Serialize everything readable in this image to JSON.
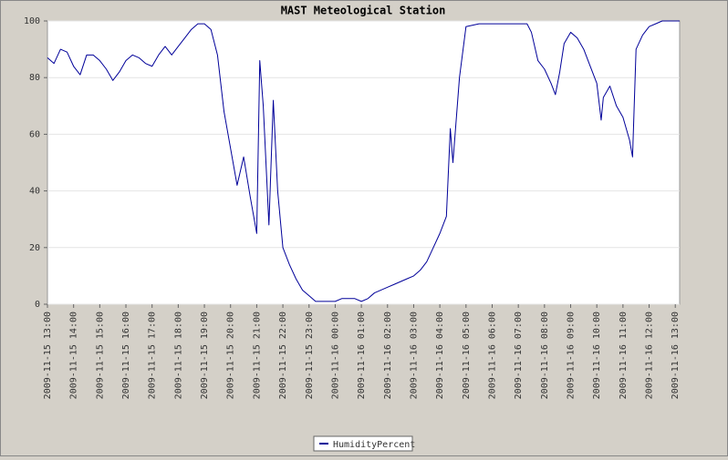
{
  "chart_data": {
    "type": "line",
    "title": "MAST Meteological Station",
    "x": [
      "2009-11-15 13:00",
      "2009-11-15 13:15",
      "2009-11-15 13:30",
      "2009-11-15 13:45",
      "2009-11-15 14:00",
      "2009-11-15 14:15",
      "2009-11-15 14:30",
      "2009-11-15 14:45",
      "2009-11-15 15:00",
      "2009-11-15 15:15",
      "2009-11-15 15:30",
      "2009-11-15 15:45",
      "2009-11-15 16:00",
      "2009-11-15 16:15",
      "2009-11-15 16:30",
      "2009-11-15 16:45",
      "2009-11-15 17:00",
      "2009-11-15 17:15",
      "2009-11-15 17:30",
      "2009-11-15 17:45",
      "2009-11-15 18:00",
      "2009-11-15 18:15",
      "2009-11-15 18:30",
      "2009-11-15 18:45",
      "2009-11-15 19:00",
      "2009-11-15 19:15",
      "2009-11-15 19:30",
      "2009-11-15 19:45",
      "2009-11-15 20:00",
      "2009-11-15 20:15",
      "2009-11-15 20:30",
      "2009-11-15 20:45",
      "2009-11-15 21:00",
      "2009-11-15 21:07",
      "2009-11-15 21:15",
      "2009-11-15 21:28",
      "2009-11-15 21:38",
      "2009-11-15 21:48",
      "2009-11-15 22:00",
      "2009-11-15 22:15",
      "2009-11-15 22:30",
      "2009-11-15 22:45",
      "2009-11-15 23:00",
      "2009-11-15 23:15",
      "2009-11-15 23:30",
      "2009-11-15 23:45",
      "2009-11-16 00:00",
      "2009-11-16 00:15",
      "2009-11-16 00:30",
      "2009-11-16 00:45",
      "2009-11-16 01:00",
      "2009-11-16 01:15",
      "2009-11-16 01:30",
      "2009-11-16 01:45",
      "2009-11-16 02:00",
      "2009-11-16 02:15",
      "2009-11-16 02:30",
      "2009-11-16 02:45",
      "2009-11-16 03:00",
      "2009-11-16 03:15",
      "2009-11-16 03:30",
      "2009-11-16 03:45",
      "2009-11-16 04:00",
      "2009-11-16 04:15",
      "2009-11-16 04:24",
      "2009-11-16 04:30",
      "2009-11-16 04:45",
      "2009-11-16 05:00",
      "2009-11-16 05:30",
      "2009-11-16 06:00",
      "2009-11-16 06:30",
      "2009-11-16 07:00",
      "2009-11-16 07:20",
      "2009-11-16 07:30",
      "2009-11-16 07:45",
      "2009-11-16 08:00",
      "2009-11-16 08:15",
      "2009-11-16 08:25",
      "2009-11-16 08:35",
      "2009-11-16 08:45",
      "2009-11-16 09:00",
      "2009-11-16 09:15",
      "2009-11-16 09:30",
      "2009-11-16 09:45",
      "2009-11-16 10:00",
      "2009-11-16 10:10",
      "2009-11-16 10:15",
      "2009-11-16 10:30",
      "2009-11-16 10:45",
      "2009-11-16 11:00",
      "2009-11-16 11:15",
      "2009-11-16 11:22",
      "2009-11-16 11:30",
      "2009-11-16 11:45",
      "2009-11-16 12:00",
      "2009-11-16 12:15",
      "2009-11-16 12:30",
      "2009-11-16 13:00",
      "2009-11-16 13:10"
    ],
    "series": [
      {
        "name": "HumidityPercent",
        "color": "#000099",
        "values": [
          87,
          85,
          90,
          89,
          84,
          81,
          88,
          88,
          86,
          83,
          79,
          82,
          86,
          88,
          87,
          85,
          84,
          88,
          91,
          88,
          91,
          94,
          97,
          99,
          99,
          97,
          88,
          68,
          55,
          42,
          52,
          38,
          25,
          86,
          70,
          28,
          72,
          40,
          20,
          14,
          9,
          5,
          3,
          1,
          1,
          1,
          1,
          2,
          2,
          2,
          1,
          2,
          4,
          5,
          6,
          7,
          8,
          9,
          10,
          12,
          15,
          20,
          25,
          31,
          62,
          50,
          80,
          98,
          99,
          99,
          99,
          99,
          99,
          96,
          86,
          83,
          78,
          74,
          82,
          92,
          96,
          94,
          90,
          84,
          78,
          65,
          73,
          77,
          70,
          66,
          58,
          52,
          90,
          95,
          98,
          99,
          100,
          100,
          100
        ]
      }
    ],
    "xlim": [
      "2009-11-15 13:00",
      "2009-11-16 13:10"
    ],
    "xticks": [
      "2009-11-15 13:00",
      "2009-11-15 14:00",
      "2009-11-15 15:00",
      "2009-11-15 16:00",
      "2009-11-15 17:00",
      "2009-11-15 18:00",
      "2009-11-15 19:00",
      "2009-11-15 20:00",
      "2009-11-15 21:00",
      "2009-11-15 22:00",
      "2009-11-15 23:00",
      "2009-11-16 00:00",
      "2009-11-16 01:00",
      "2009-11-16 02:00",
      "2009-11-16 03:00",
      "2009-11-16 04:00",
      "2009-11-16 05:00",
      "2009-11-16 06:00",
      "2009-11-16 07:00",
      "2009-11-16 08:00",
      "2009-11-16 09:00",
      "2009-11-16 10:00",
      "2009-11-16 11:00",
      "2009-11-16 12:00",
      "2009-11-16 13:00"
    ],
    "ylim": [
      0,
      100
    ],
    "yticks": [
      0,
      20,
      40,
      60,
      80,
      100
    ],
    "grid": true,
    "legend": "bottom"
  }
}
